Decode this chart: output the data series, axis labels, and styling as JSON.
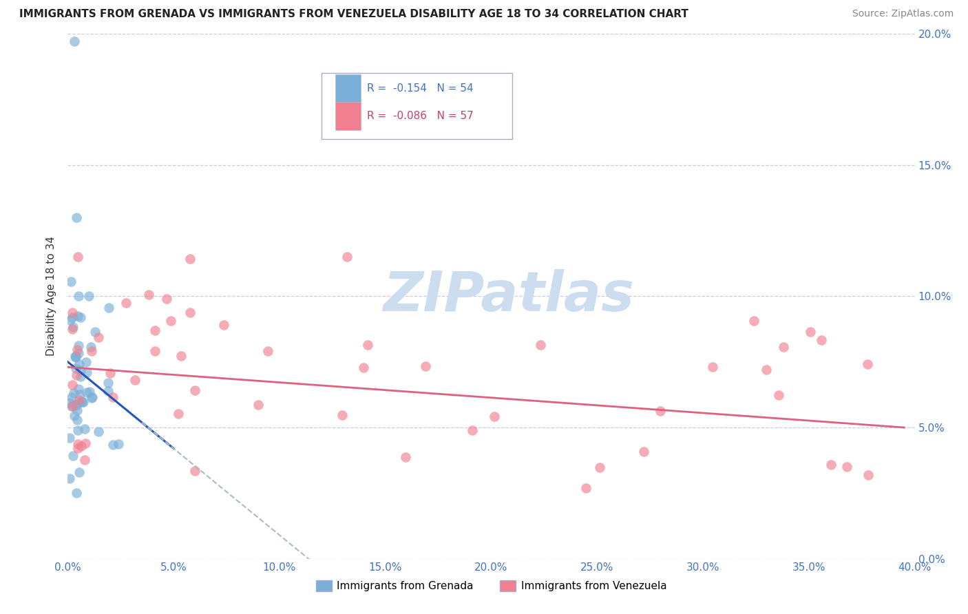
{
  "title": "IMMIGRANTS FROM GRENADA VS IMMIGRANTS FROM VENEZUELA DISABILITY AGE 18 TO 34 CORRELATION CHART",
  "source": "Source: ZipAtlas.com",
  "ylabel": "Disability Age 18 to 34",
  "xlim": [
    0.0,
    0.4
  ],
  "ylim": [
    0.0,
    0.2
  ],
  "grenada_color": "#7ab0d8",
  "venezuela_color": "#f08090",
  "trend_grenada_color": "#2255bb",
  "trend_venezuela_color": "#e06080",
  "trend_dashed_color": "#aabbcc",
  "watermark_text": "ZIPatlas",
  "watermark_color": "#ccddf0",
  "R_grenada": -0.154,
  "N_grenada": 54,
  "R_venezuela": -0.086,
  "N_venezuela": 57,
  "tick_color": "#4472c4",
  "grid_color": "#ccccdd",
  "title_color": "#222222",
  "source_color": "#888888"
}
